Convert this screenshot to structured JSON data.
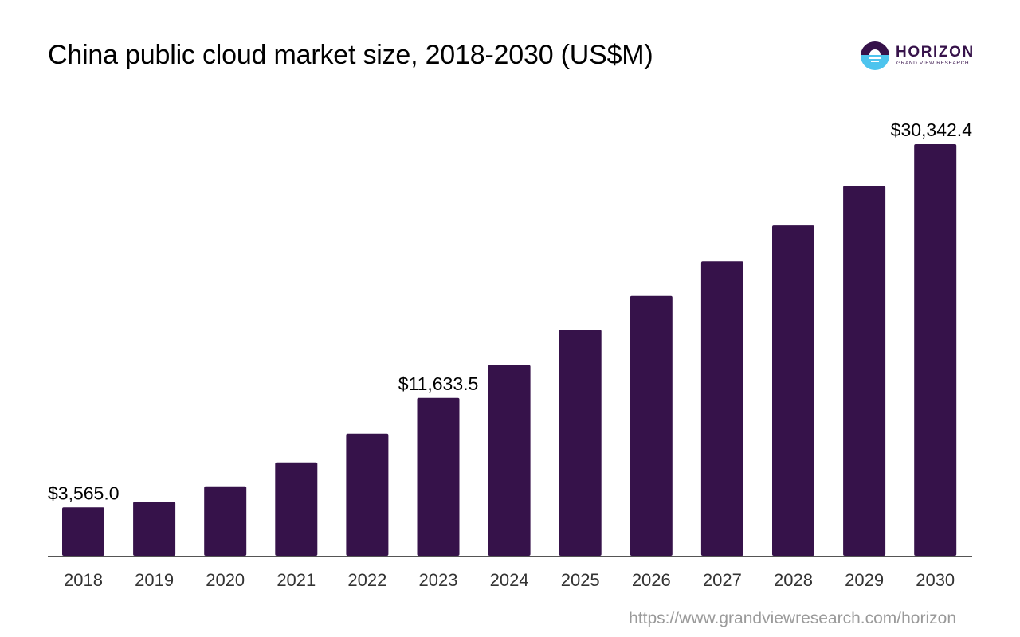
{
  "header": {
    "title": "China public cloud market size, 2018-2030 (US$M)"
  },
  "logo": {
    "name": "HORIZON",
    "tagline": "GRAND VIEW RESEARCH",
    "icon": "horizon-sunrise-logo-icon",
    "colors": {
      "primary": "#36124a",
      "accent": "#4dc4ee"
    }
  },
  "footer": {
    "source_url": "https://www.grandviewresearch.com/horizon"
  },
  "chart_data": {
    "type": "bar",
    "title": "China public cloud market size, 2018-2030 (US$M)",
    "xlabel": "",
    "ylabel": "",
    "categories": [
      "2018",
      "2019",
      "2020",
      "2021",
      "2022",
      "2023",
      "2024",
      "2025",
      "2026",
      "2027",
      "2028",
      "2029",
      "2030"
    ],
    "series": [
      {
        "values": [
          3565.0,
          3980,
          5120,
          6880,
          9000,
          11633.5,
          14050,
          16650,
          19150,
          21700,
          24350,
          27280,
          30342.4
        ]
      }
    ],
    "data_labels": [
      {
        "category": "2018",
        "text": "$3,565.0"
      },
      {
        "category": "2023",
        "text": "$11,633.5"
      },
      {
        "category": "2030",
        "text": "$30,342.4"
      }
    ],
    "ylim": [
      0,
      30342.4
    ],
    "grid": false,
    "legend": "none",
    "bar_color": "#36124a",
    "axis_color": "#555555"
  }
}
